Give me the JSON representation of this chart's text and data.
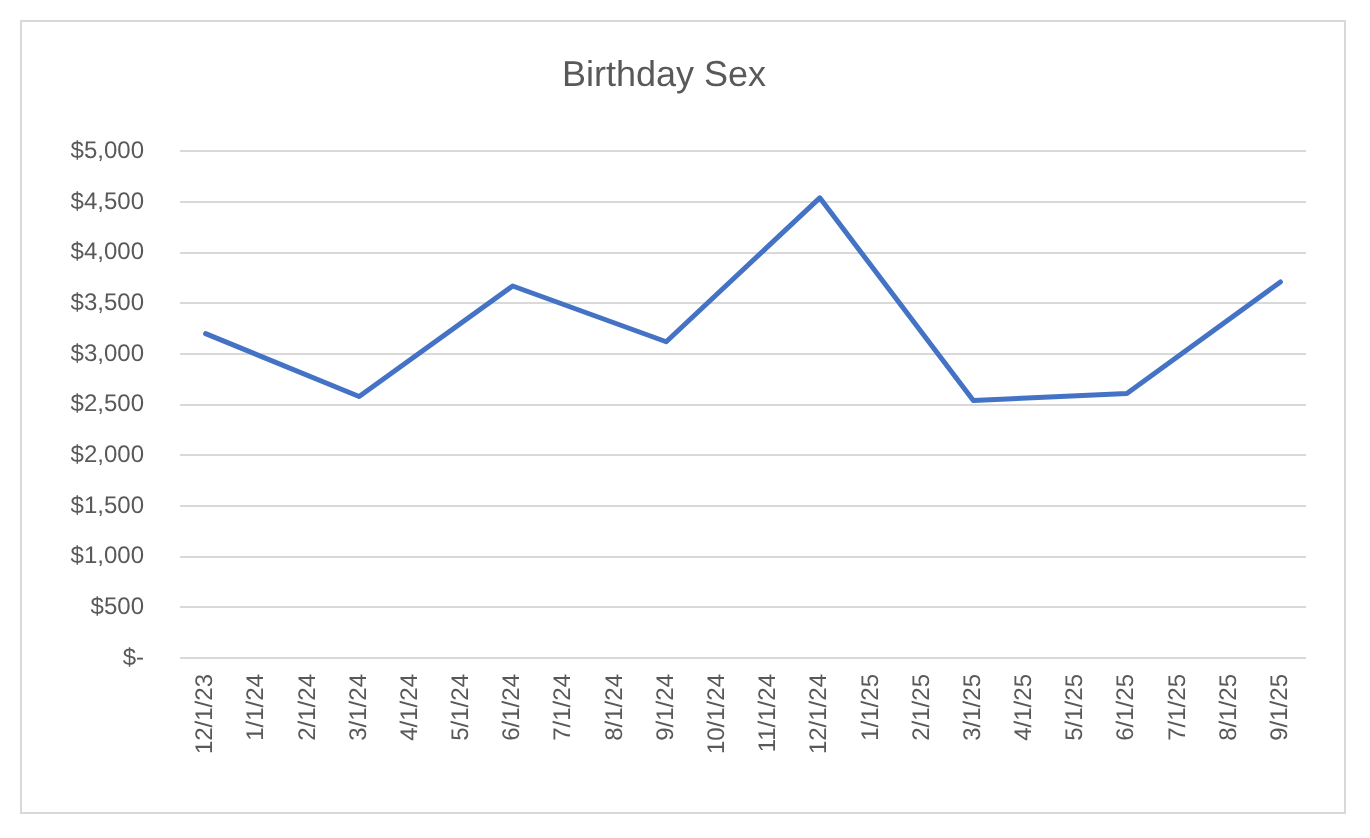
{
  "chart_data": {
    "type": "line",
    "title": "Birthday Sex",
    "x": [
      "2023-12-01",
      "2024-03-01",
      "2024-06-01",
      "2024-09-01",
      "2024-12-01",
      "2025-03-01",
      "2025-06-01",
      "2025-09-01"
    ],
    "values": [
      3200,
      2580,
      3670,
      3120,
      4540,
      2540,
      2610,
      3710
    ],
    "color": "#4472c4",
    "line_style": "solid",
    "xlim": [
      "2023-11-16",
      "2025-09-16"
    ],
    "xticks": [
      {
        "value": "2023-12-01",
        "label": "12/1/23"
      },
      {
        "value": "2024-01-01",
        "label": "1/1/24"
      },
      {
        "value": "2024-02-01",
        "label": "2/1/24"
      },
      {
        "value": "2024-03-01",
        "label": "3/1/24"
      },
      {
        "value": "2024-04-01",
        "label": "4/1/24"
      },
      {
        "value": "2024-05-01",
        "label": "5/1/24"
      },
      {
        "value": "2024-06-01",
        "label": "6/1/24"
      },
      {
        "value": "2024-07-01",
        "label": "7/1/24"
      },
      {
        "value": "2024-08-01",
        "label": "8/1/24"
      },
      {
        "value": "2024-09-01",
        "label": "9/1/24"
      },
      {
        "value": "2024-10-01",
        "label": "10/1/24"
      },
      {
        "value": "2024-11-01",
        "label": "11/1/24"
      },
      {
        "value": "2024-12-01",
        "label": "12/1/24"
      },
      {
        "value": "2025-01-01",
        "label": "1/1/25"
      },
      {
        "value": "2025-02-01",
        "label": "2/1/25"
      },
      {
        "value": "2025-03-01",
        "label": "3/1/25"
      },
      {
        "value": "2025-04-01",
        "label": "4/1/25"
      },
      {
        "value": "2025-05-01",
        "label": "5/1/25"
      },
      {
        "value": "2025-06-01",
        "label": "6/1/25"
      },
      {
        "value": "2025-07-01",
        "label": "7/1/25"
      },
      {
        "value": "2025-08-01",
        "label": "8/1/25"
      },
      {
        "value": "2025-09-01",
        "label": "9/1/25"
      }
    ],
    "ylim": [
      0,
      5000
    ],
    "yticks": [
      {
        "value": 0,
        "label": "$-"
      },
      {
        "value": 500,
        "label": "$500"
      },
      {
        "value": 1000,
        "label": "$1,000"
      },
      {
        "value": 1500,
        "label": "$1,500"
      },
      {
        "value": 2000,
        "label": "$2,000"
      },
      {
        "value": 2500,
        "label": "$2,500"
      },
      {
        "value": 3000,
        "label": "$3,000"
      },
      {
        "value": 3500,
        "label": "$3,500"
      },
      {
        "value": 4000,
        "label": "$4,000"
      },
      {
        "value": 4500,
        "label": "$4,500"
      },
      {
        "value": 5000,
        "label": "$5,000"
      }
    ],
    "grid": "y"
  }
}
